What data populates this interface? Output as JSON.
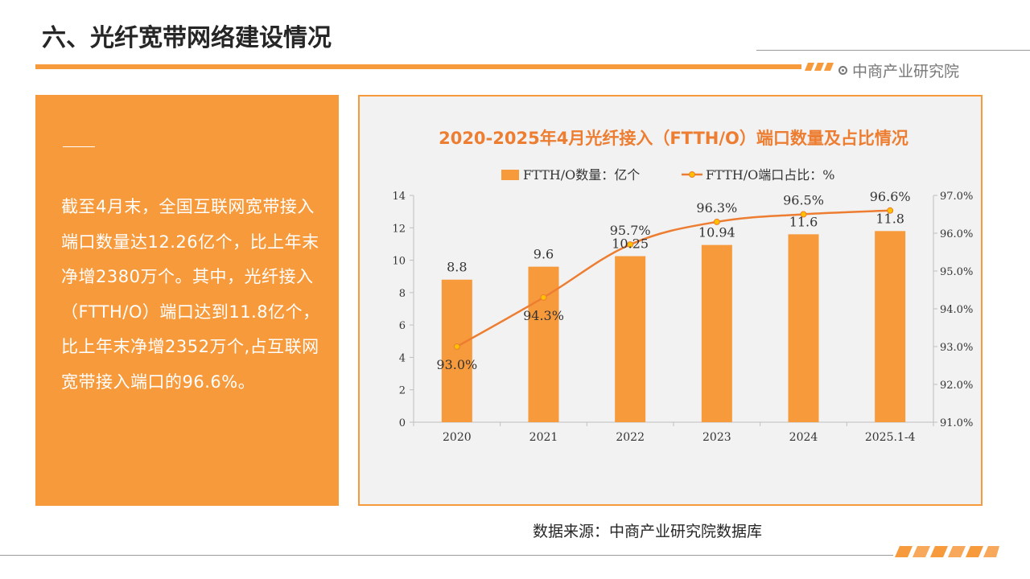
{
  "page": {
    "title": "六、光纤宽带网络建设情况",
    "brand": "中商产业研究院",
    "description": "截至4月末，全国互联网宽带接入端口数量达12.26亿个，比上年末净增2380万个。其中，光纤接入（FTTH/O）端口达到11.8亿个，比上年末净增2352万个,占互联网宽带接入端口的96.6%。",
    "source": "数据来源：中商产业研究院数据库"
  },
  "colors": {
    "accent": "#f79a3b",
    "bar": "#f79a3b",
    "line": "#ed7d31",
    "marker": "#ffc000"
  },
  "chart_data": {
    "type": "bar",
    "title": "2020-2025年4月光纤接入（FTTH/O）端口数量及占比情况",
    "categories": [
      "2020",
      "2021",
      "2022",
      "2023",
      "2024",
      "2025.1-4"
    ],
    "series": [
      {
        "name": "FTTH/O数量：亿个",
        "type": "bar",
        "axis": "left",
        "values": [
          8.8,
          9.6,
          10.25,
          10.94,
          11.6,
          11.8
        ],
        "labels": [
          "8.8",
          "9.6",
          "10.25",
          "10.94",
          "11.6",
          "11.8"
        ]
      },
      {
        "name": "FTTH/O端口占比：%",
        "type": "line",
        "axis": "right",
        "values": [
          93.0,
          94.3,
          95.7,
          96.3,
          96.5,
          96.6
        ],
        "labels": [
          "93.0%",
          "94.3%",
          "95.7%",
          "96.3%",
          "96.5%",
          "96.6%"
        ]
      }
    ],
    "y_left": {
      "min": 0,
      "max": 14,
      "ticks": [
        "0",
        "2",
        "4",
        "6",
        "8",
        "10",
        "12",
        "14"
      ]
    },
    "y_right": {
      "min": 91,
      "max": 97,
      "ticks": [
        "91.0%",
        "92.0%",
        "93.0%",
        "94.0%",
        "95.0%",
        "96.0%",
        "97.0%"
      ]
    },
    "legend_position": "top",
    "grid": false
  }
}
